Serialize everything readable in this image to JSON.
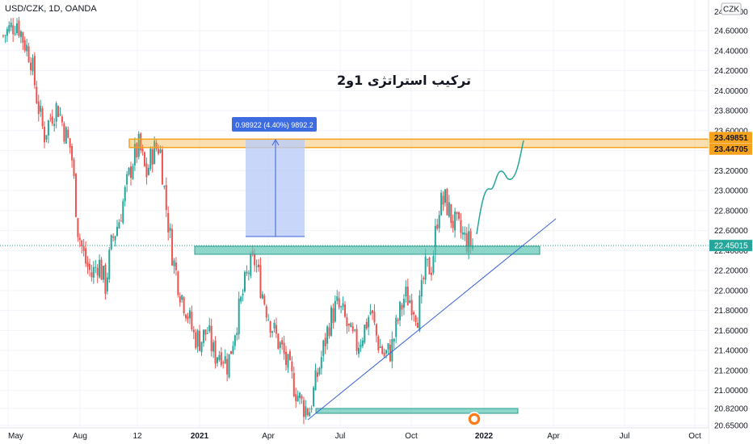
{
  "header": {
    "symbol_line": "USD/CZK, 1D, OANDA",
    "currency_badge": "CZK"
  },
  "annotation_title": "ترکیب استراتژی 1و2",
  "measure_label": "0.98922 (4.40%) 9892.2",
  "price_axis": {
    "ticks": [
      "24.60000",
      "24.40000",
      "24.20000",
      "24.00000",
      "23.80000",
      "23.60000",
      "23.40000",
      "23.20000",
      "23.00000",
      "22.80000",
      "22.60000",
      "22.40000",
      "22.20000",
      "22.00000",
      "21.80000",
      "21.60000",
      "21.40000",
      "21.20000",
      "21.00000",
      "20.82000",
      "20.65000"
    ],
    "tick_values": [
      24.6,
      24.4,
      24.2,
      24.0,
      23.8,
      23.6,
      23.4,
      23.2,
      23.0,
      22.8,
      22.6,
      22.4,
      22.2,
      22.0,
      21.8,
      21.6,
      21.4,
      21.2,
      21.0,
      20.82,
      20.65
    ],
    "top_tick": "24.80000",
    "badges": [
      {
        "label": "23.49851",
        "value": 23.49851,
        "color": "#f6a21d"
      },
      {
        "label": "23.44705",
        "value": 23.44705,
        "color": "#f6a21d"
      },
      {
        "label": "22.45015",
        "value": 22.45015,
        "color": "#26a69a"
      }
    ]
  },
  "time_axis": {
    "labels": [
      {
        "text": "May",
        "bold": false
      },
      {
        "text": "Aug",
        "bold": false
      },
      {
        "text": "12",
        "bold": false
      },
      {
        "text": "2021",
        "bold": true
      },
      {
        "text": "Apr",
        "bold": false
      },
      {
        "text": "Jul",
        "bold": false
      },
      {
        "text": "Oct",
        "bold": false
      },
      {
        "text": "2022",
        "bold": true
      },
      {
        "text": "Apr",
        "bold": false
      },
      {
        "text": "Jul",
        "bold": false
      },
      {
        "text": "Oct",
        "bold": false
      }
    ]
  },
  "colors": {
    "up": "#26a69a",
    "down": "#ef5350",
    "resistance_zone": "#f6a21d",
    "support_zone": "#5fc4b3",
    "trendline": "#3b63d9",
    "measure_fill": "#b9ccf8",
    "measure_label_bg": "#3d6be0"
  },
  "chart_data": {
    "type": "candlestick",
    "title": "USD/CZK, 1D, OANDA",
    "xlabel": "",
    "ylabel": "",
    "ylim": [
      20.65,
      24.8
    ],
    "x_range": [
      "2020-05",
      "2022-10"
    ],
    "last_price": 22.45015,
    "zones": [
      {
        "role": "resistance",
        "low": 23.44705,
        "high": 23.49851
      },
      {
        "role": "support",
        "low": 22.25,
        "high": 22.35
      },
      {
        "role": "support",
        "low": 20.75,
        "high": 20.8
      }
    ],
    "measurement": {
      "from": 22.46,
      "to": 23.45,
      "change": 0.98922,
      "percent": 4.4,
      "bars": 9892.2
    },
    "trendline": {
      "from": [
        "2021-06-01",
        20.66
      ],
      "to": [
        "2022-03-05",
        22.63
      ]
    },
    "projection": [
      22.55,
      22.8,
      23.0,
      22.9,
      23.05,
      23.15,
      23.1,
      23.45
    ],
    "candles_approx_close_series": [
      24.55,
      24.62,
      24.7,
      24.5,
      24.35,
      23.9,
      23.55,
      23.75,
      23.85,
      23.6,
      23.4,
      22.6,
      22.3,
      22.15,
      22.3,
      22.05,
      22.5,
      22.7,
      23.0,
      23.3,
      23.45,
      23.15,
      23.4,
      23.45,
      22.8,
      22.3,
      22.0,
      21.8,
      21.55,
      21.5,
      21.6,
      21.35,
      21.4,
      21.25,
      21.6,
      21.9,
      22.2,
      22.3,
      22.0,
      21.75,
      21.55,
      21.4,
      21.2,
      21.0,
      20.85,
      20.8,
      21.1,
      21.4,
      21.7,
      21.85,
      21.75,
      21.55,
      21.45,
      21.6,
      21.8,
      21.5,
      21.35,
      21.4,
      21.7,
      21.95,
      21.9,
      21.75,
      22.2,
      22.25,
      22.85,
      22.9,
      22.7,
      22.6,
      22.5,
      22.45
    ]
  }
}
